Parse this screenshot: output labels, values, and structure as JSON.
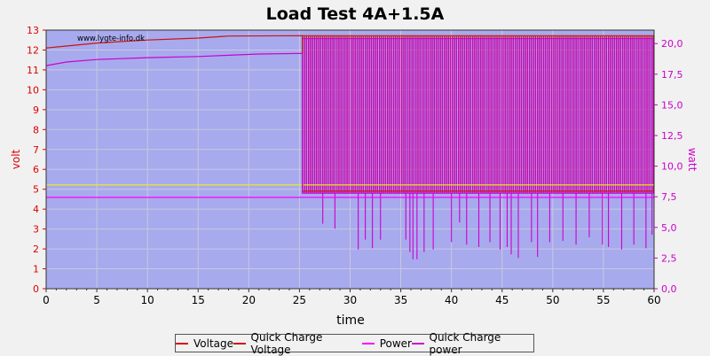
{
  "chart_data": {
    "type": "line",
    "title": "Load Test 4A+1.5A",
    "watermark": "www.lygte-info.dk",
    "xlabel": "time",
    "ylabel_left": "volt",
    "ylabel_right": "watt",
    "xlim": [
      0,
      60
    ],
    "ylim_left": [
      0,
      13
    ],
    "ylim_right": [
      0,
      21.1
    ],
    "x_ticks": [
      "0",
      "5",
      "10",
      "15",
      "20",
      "25",
      "30",
      "35",
      "40",
      "45",
      "50",
      "55",
      "60"
    ],
    "y_ticks_left": [
      "0",
      "1",
      "2",
      "3",
      "4",
      "5",
      "6",
      "7",
      "8",
      "9",
      "10",
      "11",
      "12",
      "13"
    ],
    "y_ticks_right": [
      "0,0",
      "2,5",
      "5,0",
      "7,5",
      "10,0",
      "12,5",
      "15,0",
      "17,5",
      "20,0"
    ],
    "grid": true,
    "legend_position": "bottom",
    "colors": {
      "voltage": "#dd0000",
      "quick_charge_voltage": "#cc1111",
      "power": "#ff00ff",
      "quick_charge_power": "#cc00cc",
      "plot_bg": "#a8aaee",
      "grid": "#c8c8e0"
    },
    "series": [
      {
        "name": "Voltage",
        "axis": "left",
        "x": [
          0,
          60
        ],
        "y": [
          5.22,
          5.22
        ]
      },
      {
        "name": "Quick Charge Voltage",
        "axis": "left",
        "x": [
          0,
          2,
          5,
          10,
          15,
          18,
          25.3,
          25.3,
          60
        ],
        "y": [
          12.1,
          12.2,
          12.35,
          12.5,
          12.6,
          12.7,
          12.72,
          4.9,
          4.9
        ],
        "spikes": {
          "from": 25.3,
          "to": 60,
          "low": 4.9,
          "high": 12.72
        }
      },
      {
        "name": "Power",
        "axis": "right",
        "x": [
          0,
          60
        ],
        "y": [
          7.45,
          7.45
        ]
      },
      {
        "name": "Quick Charge power",
        "axis": "right",
        "x": [
          0,
          2,
          5,
          10,
          15,
          18,
          21,
          25.3,
          25.3,
          60
        ],
        "y": [
          18.2,
          18.5,
          18.7,
          18.85,
          18.95,
          19.05,
          19.15,
          19.2,
          7.8,
          7.8
        ],
        "spikes": {
          "from": 25.3,
          "to": 60,
          "low": 7.8,
          "high": 20.4,
          "dips": [
            [
              27.3,
              5.3
            ],
            [
              28.5,
              4.9
            ],
            [
              30.8,
              3.2
            ],
            [
              31.5,
              4.0
            ],
            [
              32.2,
              3.3
            ],
            [
              33.0,
              4.0
            ],
            [
              35.5,
              4.0
            ],
            [
              35.9,
              3.0
            ],
            [
              36.2,
              2.4
            ],
            [
              36.6,
              2.4
            ],
            [
              37.3,
              3.0
            ],
            [
              38.2,
              3.2
            ],
            [
              40.0,
              3.8
            ],
            [
              40.8,
              5.4
            ],
            [
              41.5,
              3.6
            ],
            [
              42.7,
              3.4
            ],
            [
              43.8,
              3.8
            ],
            [
              44.8,
              3.2
            ],
            [
              45.5,
              3.4
            ],
            [
              45.9,
              2.8
            ],
            [
              46.6,
              2.5
            ],
            [
              47.9,
              3.8
            ],
            [
              48.5,
              2.6
            ],
            [
              49.7,
              3.8
            ],
            [
              51.0,
              3.9
            ],
            [
              52.3,
              3.6
            ],
            [
              53.6,
              4.2
            ],
            [
              54.9,
              3.6
            ],
            [
              55.5,
              3.4
            ],
            [
              56.8,
              3.2
            ],
            [
              58.0,
              3.6
            ],
            [
              59.2,
              3.3
            ],
            [
              59.8,
              4.4
            ]
          ]
        }
      }
    ]
  },
  "legend": {
    "items": [
      "Voltage",
      "Quick Charge Voltage",
      "Power",
      "Quick Charge power"
    ]
  }
}
